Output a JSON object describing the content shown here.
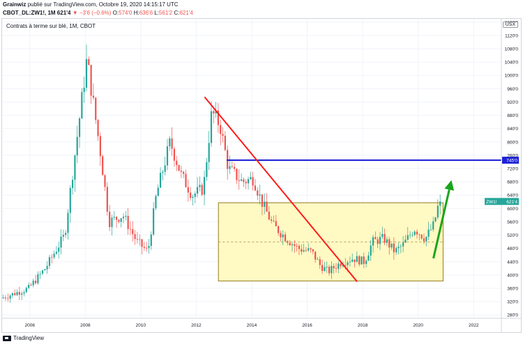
{
  "header": {
    "author": "Grainwiz",
    "published": "publié sur TradingView.com, Octobre 19, 2020 14:15:17 UTC",
    "symbol": "CBOT_DL:ZW1!, 1M",
    "price": "621'4",
    "change": "▼ −3'6 (−0.6%)",
    "ohlc": [
      {
        "label": "O:",
        "value": "574'0"
      },
      {
        "label": "H:",
        "value": "636'6"
      },
      {
        "label": "L:",
        "value": "561'2"
      },
      {
        "label": "C:",
        "value": "621'4"
      }
    ]
  },
  "chart": {
    "legend": "Contrats à terme sur blé, 1M, CBOT",
    "currency_button": "USX",
    "y_ticks": [
      "1160'0",
      "1120'0",
      "1080'0",
      "1040'0",
      "1000'0",
      "960'0",
      "920'0",
      "880'0",
      "840'0",
      "800'0",
      "760'0",
      "720'0",
      "680'0",
      "640'0",
      "600'0",
      "560'0",
      "520'0",
      "480'0",
      "440'0",
      "400'0",
      "360'0",
      "320'0",
      "280'0"
    ],
    "x_ticks": [
      "2006",
      "2008",
      "2010",
      "2012",
      "2014",
      "2016",
      "2018",
      "2020",
      "2022"
    ],
    "level_label": "745'0",
    "last_label": "ZW1!",
    "last_value": "621'4",
    "colors": {
      "up": "#26a69a",
      "down": "#ef5350",
      "resistance": "#1e22d6",
      "trendline": "#ff1a1a",
      "arrow": "#1aa51a",
      "range_fill": "#fff9c4",
      "range_border": "#a58f3c"
    }
  },
  "chart_data": {
    "type": "candlestick",
    "ylim": [
      270,
      1170
    ],
    "xlim": [
      2005.0,
      2023.0
    ],
    "range_box": {
      "x": [
        2012.8,
        2020.9
      ],
      "y": [
        382,
        617
      ]
    },
    "resistance": {
      "x": [
        2013.1,
        2023.0
      ],
      "y": 745
    },
    "trendline": {
      "x": [
        2012.3,
        2017.8
      ],
      "y": [
        935,
        380
      ]
    },
    "arrow": {
      "x": [
        2020.55,
        2021.2
      ],
      "y": [
        450,
        685
      ]
    }
  },
  "footer": {
    "brand": "TradingView"
  }
}
